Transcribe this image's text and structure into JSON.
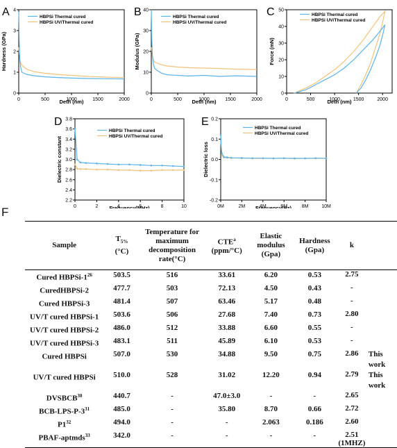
{
  "colors": {
    "thermal": "#5bb3e8",
    "uv": "#f2c27a",
    "axis": "#000000"
  },
  "chart_data": [
    {
      "panel": "A",
      "type": "line",
      "xlabel": "Deth (nm)",
      "ylabel": "Hardness (GPa)",
      "xlim": [
        0,
        2000
      ],
      "ylim": [
        0,
        4
      ],
      "xticks": [
        "0",
        "500",
        "1000",
        "1500",
        "2000"
      ],
      "yticks": [
        "0",
        "1",
        "2",
        "3",
        "4"
      ],
      "legend": "top-right",
      "series": [
        {
          "name": "HBPSi Thermal cured",
          "color": "thermal",
          "x": [
            0,
            10,
            20,
            40,
            60,
            100,
            150,
            200,
            300,
            500,
            700,
            1000,
            1300,
            1600,
            2000
          ],
          "y": [
            3.9,
            2.4,
            1.6,
            1.2,
            1.0,
            0.95,
            0.9,
            0.87,
            0.83,
            0.78,
            0.75,
            0.72,
            0.7,
            0.69,
            0.68
          ]
        },
        {
          "name": "HBPSi UV/Thermal cured",
          "color": "uv",
          "x": [
            0,
            10,
            20,
            40,
            60,
            100,
            150,
            200,
            300,
            500,
            700,
            1000,
            1300,
            1600,
            2000
          ],
          "y": [
            2.2,
            1.9,
            1.6,
            1.45,
            1.35,
            1.25,
            1.15,
            1.1,
            1.02,
            0.95,
            0.9,
            0.85,
            0.8,
            0.77,
            0.74
          ]
        }
      ]
    },
    {
      "panel": "B",
      "type": "line",
      "xlabel": "Deth (nm)",
      "ylabel": "Modulus (GPa)",
      "xlim": [
        0,
        2000
      ],
      "ylim": [
        0,
        40
      ],
      "xticks": [
        "0",
        "500",
        "1000",
        "1500",
        "2000"
      ],
      "yticks": [
        "0",
        "10",
        "20",
        "30",
        "40"
      ],
      "legend": "top-right",
      "series": [
        {
          "name": "HBPSi Thermal cured",
          "color": "thermal",
          "x": [
            0,
            10,
            20,
            40,
            60,
            100,
            200,
            300,
            500,
            700,
            1000,
            1300,
            1600,
            2000
          ],
          "y": [
            40,
            25,
            18,
            14,
            12,
            11,
            9.5,
            8.8,
            8.5,
            8.2,
            8.5,
            8.0,
            8.3,
            8.0
          ]
        },
        {
          "name": "HBPSi UV/Thermal cured",
          "color": "uv",
          "x": [
            0,
            10,
            20,
            40,
            60,
            100,
            200,
            300,
            500,
            700,
            1000,
            1300,
            1600,
            2000
          ],
          "y": [
            22,
            20,
            18,
            16,
            15,
            14.5,
            13.5,
            13,
            12.5,
            12.2,
            12,
            11.8,
            11.5,
            11.3
          ]
        }
      ]
    },
    {
      "panel": "C",
      "type": "line",
      "xlabel": "Deth (nm)",
      "ylabel": "Force (mN)",
      "xlim": [
        0,
        2200
      ],
      "ylim": [
        0,
        50
      ],
      "xticks": [
        "0",
        "500",
        "1000",
        "1500",
        "2000"
      ],
      "yticks": [
        "0",
        "10",
        "20",
        "30",
        "40",
        "50"
      ],
      "legend": "top-left",
      "series": [
        {
          "name": "HBPSi Thermal cured",
          "color": "thermal",
          "x": [
            170,
            400,
            600,
            800,
            1000,
            1200,
            1400,
            1600,
            1800,
            2000,
            2050,
            2020,
            1950,
            1850,
            1750,
            1650,
            1550,
            1450
          ],
          "y": [
            0,
            2,
            5,
            8,
            11,
            15,
            20,
            26,
            32,
            39,
            41,
            37,
            29,
            21,
            14,
            8,
            3,
            0
          ]
        },
        {
          "name": "HBPSi UV/Thermal cured",
          "color": "uv",
          "x": [
            150,
            400,
            600,
            800,
            1000,
            1200,
            1400,
            1600,
            1800,
            1950,
            2050,
            2020,
            1950,
            1850,
            1750,
            1650,
            1550,
            1450
          ],
          "y": [
            0,
            3,
            6,
            10,
            14,
            19,
            25,
            32,
            40,
            46,
            49,
            45,
            36,
            27,
            18,
            11,
            5,
            0
          ]
        }
      ]
    },
    {
      "panel": "D",
      "type": "line",
      "xlabel": "Frequency(MHz)",
      "ylabel": "Dielectric constant",
      "xlim": [
        0,
        10
      ],
      "ylim": [
        2.2,
        3.8
      ],
      "xticks": [
        "0",
        "2",
        "4",
        "6",
        "8",
        "10"
      ],
      "yticks": [
        "2.2",
        "2.4",
        "2.6",
        "2.8",
        "3.0",
        "3.2",
        "3.4",
        "3.6",
        "3.8"
      ],
      "legend": "top-right",
      "series": [
        {
          "name": "HBPSi Thermal cured",
          "color": "thermal",
          "x": [
            0,
            0.2,
            0.5,
            1,
            2,
            3,
            4,
            5,
            6,
            7,
            8,
            9,
            10
          ],
          "y": [
            3.6,
            3.0,
            2.94,
            2.93,
            2.92,
            2.91,
            2.9,
            2.9,
            2.89,
            2.88,
            2.88,
            2.87,
            2.86
          ]
        },
        {
          "name": "HBPSi UV/Thermal cured",
          "color": "uv",
          "x": [
            0,
            0.2,
            0.5,
            1,
            2,
            3,
            4,
            5,
            6,
            7,
            8,
            9,
            10
          ],
          "y": [
            2.9,
            2.82,
            2.81,
            2.81,
            2.8,
            2.8,
            2.79,
            2.79,
            2.78,
            2.78,
            2.79,
            2.79,
            2.79
          ]
        }
      ]
    },
    {
      "panel": "E",
      "type": "line",
      "xlabel": "Frequency(Hz)",
      "ylabel": "Dielectric loss",
      "xlim": [
        0,
        10
      ],
      "ylim": [
        -0.2,
        0.2
      ],
      "xticks": [
        "0M",
        "2M",
        "4M",
        "6M",
        "8M",
        "10M"
      ],
      "yticks": [
        "-0.2",
        "-0.1",
        "0.0",
        "0.1",
        "0.2"
      ],
      "legend": "top-right",
      "series": [
        {
          "name": "HBPSi Thermal cured",
          "color": "thermal",
          "x": [
            0,
            0.1,
            0.3,
            0.6,
            1,
            2,
            3,
            4,
            5,
            6,
            7,
            8,
            9,
            10
          ],
          "y": [
            0.12,
            0.03,
            0.012,
            0.01,
            0.008,
            0.007,
            0.006,
            0.006,
            0.005,
            0.006,
            0.005,
            0.005,
            0.006,
            0.005
          ]
        },
        {
          "name": "HBPSi UV/Thermal cured",
          "color": "uv",
          "x": [
            0,
            0.1,
            0.3,
            0.6,
            1,
            2,
            3,
            4,
            5,
            6,
            7,
            8,
            9,
            10
          ],
          "y": [
            0.09,
            0.02,
            0.01,
            0.008,
            0.007,
            0.006,
            0.005,
            0.005,
            0.005,
            0.005,
            0.004,
            0.005,
            0.005,
            0.005
          ]
        }
      ]
    }
  ],
  "table": {
    "letter": "F",
    "headers": {
      "sample": "Sample",
      "t5_main": "T",
      "t5_sub": "5%",
      "t5_unit": "(°C)",
      "temp": "Temperature for maximum decomposition rate(°C)",
      "cte_main": "CTE",
      "cte_sup": "a",
      "cte_unit": "(ppm/°C)",
      "modulus": "Elastic modulus (Gpa)",
      "hardness": "Hardness (Gpa)",
      "k": "k"
    },
    "rows": [
      {
        "sample": "Cured HBPSi-1",
        "ref": "26",
        "t5": "503.5",
        "tmax": "516",
        "cte": "33.61",
        "mod": "6.20",
        "hard": "0.53",
        "k": "2.75",
        "note": ""
      },
      {
        "sample": "CuredHBPSi-2",
        "ref": "",
        "t5": "477.7",
        "tmax": "503",
        "cte": "72.13",
        "mod": "4.50",
        "hard": "0.43",
        "k": "-",
        "note": ""
      },
      {
        "sample": "Cured HBPSi-3",
        "ref": "",
        "t5": "481.4",
        "tmax": "507",
        "cte": "63.46",
        "mod": "5.17",
        "hard": "0.48",
        "k": "-",
        "note": ""
      },
      {
        "sample": "UV/T cured HBPSi-1",
        "ref": "",
        "t5": "503.6",
        "tmax": "506",
        "cte": "27.68",
        "mod": "7.40",
        "hard": "0.73",
        "k": "2.80",
        "note": ""
      },
      {
        "sample": "UV/T cured HBPSi-2",
        "ref": "",
        "t5": "486.0",
        "tmax": "512",
        "cte": "33.88",
        "mod": "6.60",
        "hard": "0.55",
        "k": "-",
        "note": ""
      },
      {
        "sample": "UV/T cured HBPSi-3",
        "ref": "",
        "t5": "483.1",
        "tmax": "511",
        "cte": "45.89",
        "mod": "6.10",
        "hard": "0.53",
        "k": "-",
        "note": ""
      },
      {
        "sample": "Cured HBPSi",
        "ref": "",
        "t5": "507.0",
        "tmax": "530",
        "cte": "34.88",
        "mod": "9.50",
        "hard": "0.75",
        "k": "2.86",
        "note": "This work"
      },
      {
        "sample": "UV/T cured HBPSi",
        "ref": "",
        "t5": "510.0",
        "tmax": "528",
        "cte": "31.02",
        "mod": "12.20",
        "hard": "0.94",
        "k": "2.79",
        "note": "This work"
      },
      {
        "sample": "DVSBCB",
        "ref": "30",
        "t5": "440.7",
        "tmax": "-",
        "cte": "47.0±3.0",
        "mod": "-",
        "hard": "-",
        "k": "2.65",
        "note": ""
      },
      {
        "sample": "BCB-LPS-P-3",
        "ref": "31",
        "t5": "485.0",
        "tmax": "-",
        "cte": "35.80",
        "mod": "8.70",
        "hard": "0.66",
        "k": "2.72",
        "note": ""
      },
      {
        "sample": "P1",
        "ref": "32",
        "t5": "494.0",
        "tmax": "-",
        "cte": "-",
        "mod": "2.063",
        "hard": "0.186",
        "k": "2.60",
        "note": ""
      },
      {
        "sample": "PBAF-aptmds",
        "ref": "33",
        "t5": "342.0",
        "tmax": "-",
        "cte": "-",
        "mod": "-",
        "hard": "-",
        "k": "2.51 (1MHZ)",
        "note": ""
      }
    ]
  }
}
